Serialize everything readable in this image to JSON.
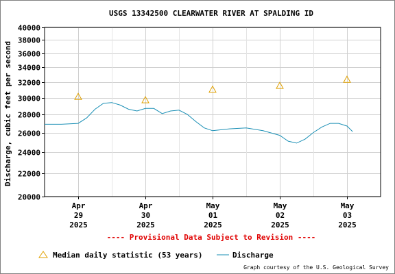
{
  "chart_data": {
    "type": "line",
    "title": "USGS 13342500 CLEARWATER RIVER AT SPALDING ID",
    "ylabel": "Discharge, cubic feet per second",
    "xlabel": "",
    "y_scale": "log",
    "ylim": [
      20000,
      40000
    ],
    "y_ticks": [
      40000,
      38000,
      36000,
      34000,
      32000,
      30000,
      28000,
      26000,
      24000,
      22000,
      20000
    ],
    "y_tick_labels": [
      "40000",
      "38000",
      "36000",
      "34000",
      "32000",
      "30000",
      "28000",
      "26000",
      "24000",
      "22000",
      "20000"
    ],
    "x_axis": {
      "type": "date",
      "range": [
        "2025-04-28T12:00",
        "2025-05-03T12:00"
      ],
      "tick_dates": [
        "2025-04-29",
        "2025-04-30",
        "2025-05-01",
        "2025-05-02",
        "2025-05-03"
      ],
      "tick_labels": [
        [
          "Apr",
          "29",
          "2025"
        ],
        [
          "Apr",
          "30",
          "2025"
        ],
        [
          "May",
          "01",
          "2025"
        ],
        [
          "May",
          "02",
          "2025"
        ],
        [
          "May",
          "03",
          "2025"
        ]
      ]
    },
    "grid": true,
    "series": [
      {
        "name": "Discharge",
        "kind": "line",
        "color": "#1a8fb5",
        "x": [
          "2025-04-28T12:00",
          "2025-04-28T18:00",
          "2025-04-29T00:00",
          "2025-04-29T03:00",
          "2025-04-29T06:00",
          "2025-04-29T09:00",
          "2025-04-29T12:00",
          "2025-04-29T15:00",
          "2025-04-29T18:00",
          "2025-04-29T21:00",
          "2025-04-30T00:00",
          "2025-04-30T03:00",
          "2025-04-30T06:00",
          "2025-04-30T09:00",
          "2025-04-30T12:00",
          "2025-04-30T15:00",
          "2025-04-30T18:00",
          "2025-04-30T21:00",
          "2025-05-01T00:00",
          "2025-05-01T06:00",
          "2025-05-01T12:00",
          "2025-05-01T18:00",
          "2025-05-02T00:00",
          "2025-05-02T03:00",
          "2025-05-02T06:00",
          "2025-05-02T09:00",
          "2025-05-02T12:00",
          "2025-05-02T15:00",
          "2025-05-02T18:00",
          "2025-05-02T21:00",
          "2025-05-03T00:00",
          "2025-05-03T02:00"
        ],
        "y": [
          26900,
          26900,
          27000,
          27600,
          28600,
          29300,
          29400,
          29100,
          28600,
          28400,
          28700,
          28700,
          28100,
          28400,
          28500,
          28000,
          27200,
          26500,
          26200,
          26400,
          26500,
          26200,
          25700,
          25100,
          24900,
          25300,
          26000,
          26600,
          27000,
          27000,
          26700,
          26100
        ]
      },
      {
        "name": "Median daily statistic (53 years)",
        "kind": "marker",
        "marker": "triangle",
        "color": "#e0a000",
        "x": [
          "2025-04-29",
          "2025-04-30",
          "2025-05-01",
          "2025-05-02",
          "2025-05-03"
        ],
        "y": [
          30100,
          29700,
          31000,
          31500,
          32300
        ]
      }
    ],
    "legend": {
      "placement": "bottom-left",
      "entries": [
        "Median daily statistic (53 years)",
        "Discharge"
      ]
    },
    "annotation": "---- Provisional Data Subject to Revision ----",
    "credit": "Graph courtesy of the U.S. Geological Survey"
  }
}
